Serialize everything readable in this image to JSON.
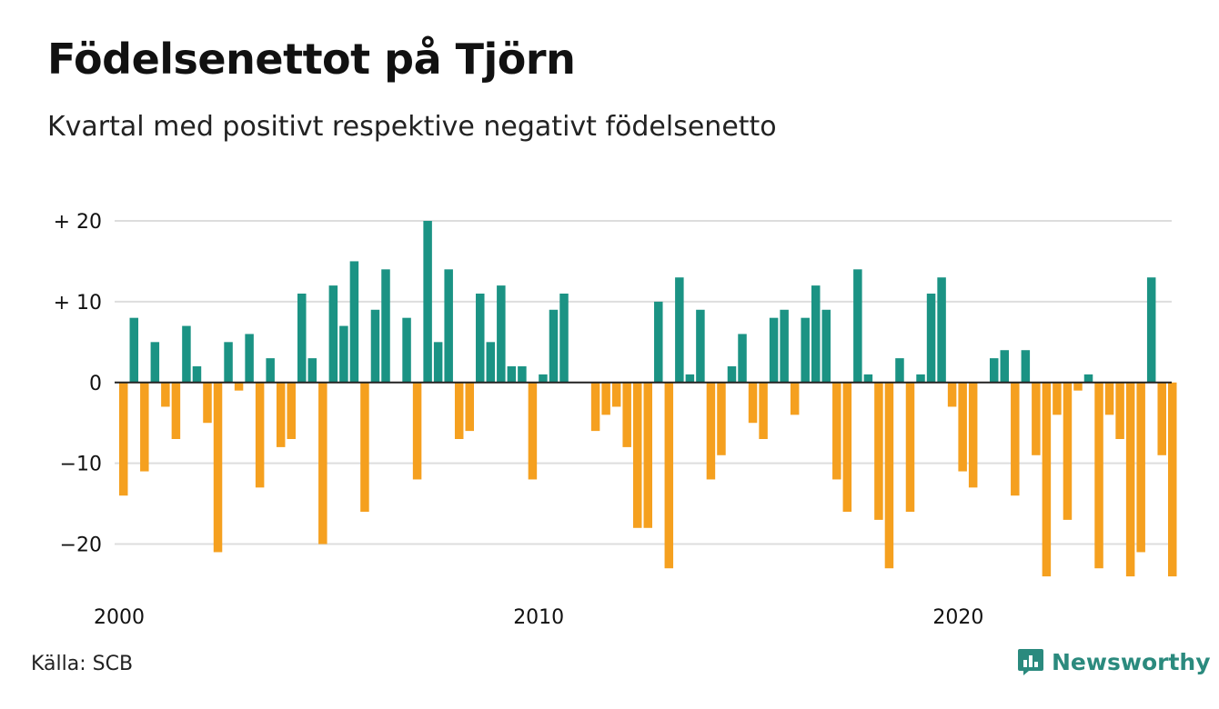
{
  "title": "Födelsenettot på Tjörn",
  "subtitle": "Kvartal med positivt respektive negativt födelsenetto",
  "source": "Källa: SCB",
  "logo": {
    "text": "Newsworthy",
    "icon": "newsworthy-chart-icon"
  },
  "colors": {
    "positive": "#1b9384",
    "negative": "#f5a01f",
    "grid": "#dddddd",
    "zero": "#222222"
  },
  "chart_data": {
    "type": "bar",
    "x_start": {
      "year": 2000,
      "quarter": 1
    },
    "x_ticks": [
      "2000",
      "2010",
      "2020"
    ],
    "y_ticks": [
      {
        "value": 20,
        "label": "+ 20"
      },
      {
        "value": 10,
        "label": "+ 10"
      },
      {
        "value": 0,
        "label": "0"
      },
      {
        "value": -10,
        "label": "−10"
      },
      {
        "value": -20,
        "label": "−20"
      }
    ],
    "ylim": [
      -25,
      20
    ],
    "grid": true,
    "values": [
      -14,
      8,
      -11,
      5,
      -3,
      -7,
      7,
      2,
      -5,
      -21,
      5,
      -1,
      6,
      -13,
      3,
      -8,
      -7,
      11,
      3,
      -20,
      12,
      7,
      15,
      -16,
      9,
      14,
      0,
      8,
      -12,
      20,
      5,
      14,
      -7,
      -6,
      11,
      5,
      12,
      2,
      2,
      -12,
      1,
      9,
      11,
      0,
      0,
      -6,
      -4,
      -3,
      -8,
      -18,
      -18,
      10,
      -23,
      13,
      1,
      9,
      -12,
      -9,
      2,
      6,
      -5,
      -7,
      8,
      9,
      -4,
      8,
      12,
      9,
      -12,
      -16,
      14,
      1,
      -17,
      -23,
      3,
      -16,
      1,
      11,
      13,
      -3,
      -11,
      -13,
      0,
      3,
      4,
      -14,
      4,
      -9,
      -24,
      -4,
      -17,
      -1,
      1,
      -23,
      -4,
      -7,
      -24,
      -21,
      13,
      -9,
      -24
    ]
  }
}
